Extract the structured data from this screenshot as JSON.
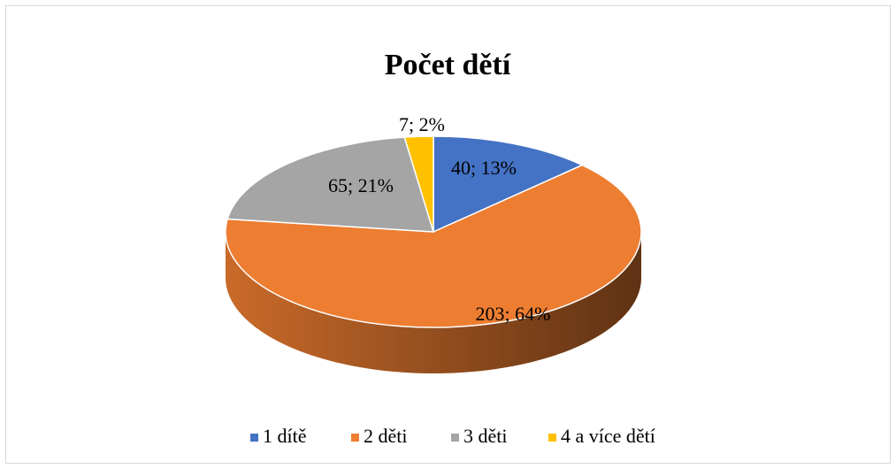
{
  "chart_data": {
    "type": "pie",
    "title": "Počet dětí",
    "categories": [
      "1 dítě",
      "2 děti",
      "3 děti",
      "4 a více dětí"
    ],
    "values": [
      40,
      203,
      65,
      7
    ],
    "value_labels": [
      "40; 13%",
      "203; 64%",
      "65; 21%",
      "7; 2%"
    ],
    "colors": [
      "#4472c4",
      "#ed7d31",
      "#a5a5a5",
      "#ffc000"
    ],
    "legend": "bottom"
  }
}
